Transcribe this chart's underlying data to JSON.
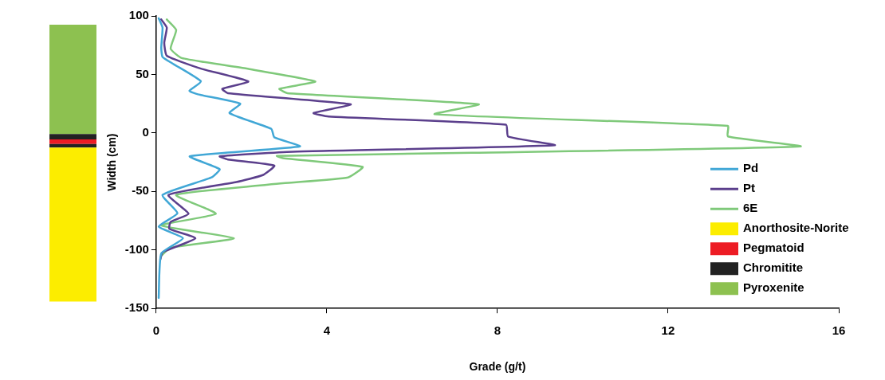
{
  "chart_data": [
    {
      "type": "bar",
      "categories": [
        null
      ],
      "ylim": [
        -150,
        100
      ],
      "legend": "right",
      "series": [
        {
          "name": "Anorthosite-Norite",
          "color": "#fced00",
          "base": [
            -144
          ],
          "values": [
            131.5
          ]
        },
        {
          "color": "#222222",
          "base": [
            -12.5
          ],
          "values": [
            3
          ]
        },
        {
          "name": "Pegmatoid",
          "color": "#ed1c24",
          "base": [
            -9.5
          ],
          "values": [
            4
          ]
        },
        {
          "name": "Chromitite",
          "color": "#222222",
          "base": [
            -5.5
          ],
          "values": [
            4.5
          ]
        },
        {
          "name": "Pyroxenite",
          "color": "#8dc150",
          "base": [
            -1
          ],
          "values": [
            93.5
          ]
        }
      ]
    },
    {
      "type": "line",
      "xlabel": "Grade (g/t)",
      "ylabel": "Width (cm)",
      "xlim": [
        0,
        16
      ],
      "xticks": [
        0,
        4,
        8,
        12,
        16
      ],
      "ylim": [
        -150,
        100
      ],
      "yticks": [
        -150,
        -100,
        -50,
        0,
        50,
        100
      ],
      "grid": false,
      "legend": "bottom right",
      "series": [
        {
          "name": "Pd",
          "color": "#41a7d6",
          "x": [
            0.06,
            0.15,
            0.12,
            0.15,
            0.4,
            1.05,
            0.78,
            0.98,
            1.97,
            1.72,
            2.7,
            2.77,
            3.37,
            0.79,
            1.49,
            1.3,
            0.15,
            0.5,
            0.06,
            0.63,
            0.12,
            0.06
          ],
          "values": [
            98,
            90,
            72.6,
            65,
            59,
            44,
            36,
            33,
            25,
            17,
            3.5,
            -3.7,
            -11.5,
            -20,
            -31,
            -38,
            -53,
            -68.6,
            -80,
            -90,
            -103,
            -141
          ]
        },
        {
          "name": "Pt",
          "color": "#5b3f8c",
          "x": [
            0.12,
            0.25,
            0.19,
            0.25,
            1.05,
            2.16,
            1.55,
            1.68,
            4.56,
            3.69,
            4.04,
            8.2,
            8.25,
            9.34,
            3.2,
            1.49,
            1.68,
            2.77,
            2.5,
            1.88,
            0.29,
            0.76,
            0.34,
            0.31,
            0.92,
            0.15,
            0.1
          ],
          "values": [
            97,
            90,
            77,
            66,
            55,
            44,
            37.7,
            34,
            24.5,
            17,
            14,
            7,
            -3,
            -10.5,
            -16,
            -20,
            -22.7,
            -28,
            -36,
            -42,
            -53,
            -69,
            -76,
            -82,
            -90,
            -102,
            -108
          ]
        },
        {
          "name": "6E",
          "color": "#7fc97a",
          "x": [
            0.25,
            0.47,
            0.34,
            0.6,
            2.12,
            3.73,
            2.89,
            3.08,
            7.56,
            6.53,
            13.4,
            13.4,
            15.1,
            7.4,
            2.83,
            2.97,
            4.84,
            4.5,
            2.97,
            0.47,
            1.4,
            0.12,
            1.82,
            0.34,
            0.12
          ],
          "values": [
            97,
            88,
            72,
            64,
            55,
            44,
            37.7,
            34,
            24.5,
            16,
            6,
            -3,
            -11.5,
            -17,
            -19.6,
            -21.5,
            -29,
            -38,
            -43,
            -53,
            -69,
            -79,
            -90,
            -98,
            -105
          ]
        }
      ]
    }
  ]
}
